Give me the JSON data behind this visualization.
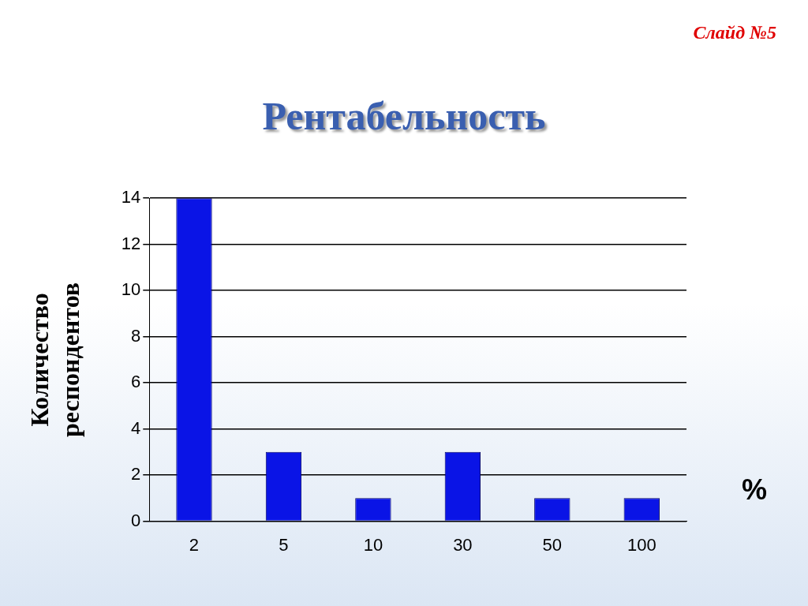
{
  "chart_data": {
    "type": "bar",
    "title": "Рентабельность",
    "xlabel": "%",
    "ylabel": "Количество респондентов",
    "annotations": [
      "Слайд №5"
    ],
    "categories": [
      "2",
      "5",
      "10",
      "30",
      "50",
      "100"
    ],
    "values": [
      14,
      3,
      1,
      3,
      1,
      1
    ],
    "color": "#0a14e6",
    "ylim": [
      0,
      14
    ],
    "yticks": [
      0,
      2,
      4,
      6,
      8,
      10,
      12,
      14
    ],
    "grid": "y"
  }
}
